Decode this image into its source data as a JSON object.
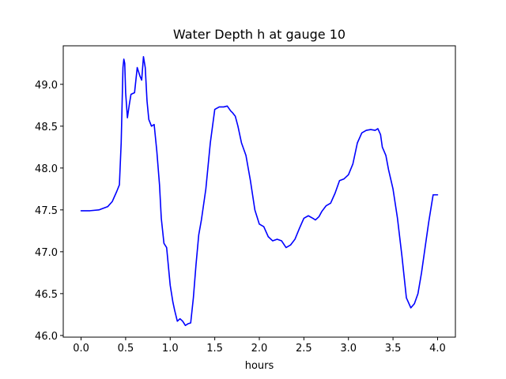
{
  "chart_data": {
    "type": "line",
    "title": "Water Depth h at gauge 10",
    "xlabel": "hours",
    "ylabel": "",
    "xlim": [
      -0.2,
      4.2
    ],
    "ylim": [
      45.98,
      49.46
    ],
    "xticks": [
      0.0,
      0.5,
      1.0,
      1.5,
      2.0,
      2.5,
      3.0,
      3.5,
      4.0
    ],
    "xtick_labels": [
      "0.0",
      "0.5",
      "1.0",
      "1.5",
      "2.0",
      "2.5",
      "3.0",
      "3.5",
      "4.0"
    ],
    "yticks": [
      46.0,
      46.5,
      47.0,
      47.5,
      48.0,
      48.5,
      49.0
    ],
    "ytick_labels": [
      "46.0",
      "46.5",
      "47.0",
      "47.5",
      "48.0",
      "48.5",
      "49.0"
    ],
    "grid": false,
    "series": [
      {
        "color": "#0000ff",
        "x": [
          0.0,
          0.1,
          0.2,
          0.3,
          0.35,
          0.4,
          0.43,
          0.45,
          0.47,
          0.48,
          0.49,
          0.5,
          0.52,
          0.54,
          0.56,
          0.6,
          0.63,
          0.66,
          0.68,
          0.7,
          0.72,
          0.74,
          0.76,
          0.79,
          0.82,
          0.85,
          0.88,
          0.9,
          0.93,
          0.96,
          1.0,
          1.03,
          1.05,
          1.08,
          1.11,
          1.14,
          1.17,
          1.2,
          1.23,
          1.26,
          1.29,
          1.32,
          1.35,
          1.4,
          1.45,
          1.5,
          1.55,
          1.6,
          1.64,
          1.68,
          1.7,
          1.73,
          1.76,
          1.8,
          1.85,
          1.9,
          1.95,
          2.0,
          2.05,
          2.1,
          2.15,
          2.2,
          2.25,
          2.3,
          2.35,
          2.4,
          2.45,
          2.5,
          2.55,
          2.6,
          2.63,
          2.67,
          2.7,
          2.75,
          2.8,
          2.85,
          2.9,
          2.95,
          3.0,
          3.05,
          3.1,
          3.15,
          3.2,
          3.25,
          3.3,
          3.33,
          3.36,
          3.38,
          3.4,
          3.42,
          3.45,
          3.5,
          3.55,
          3.6,
          3.65,
          3.7,
          3.74,
          3.78,
          3.82,
          3.86,
          3.9,
          3.95,
          4.0
        ],
        "y": [
          47.49,
          47.49,
          47.5,
          47.54,
          47.6,
          47.72,
          47.8,
          48.3,
          49.2,
          49.3,
          49.25,
          48.9,
          48.6,
          48.75,
          48.88,
          48.9,
          49.2,
          49.1,
          49.05,
          49.33,
          49.2,
          48.8,
          48.58,
          48.5,
          48.52,
          48.2,
          47.8,
          47.4,
          47.1,
          47.05,
          46.6,
          46.4,
          46.3,
          46.17,
          46.2,
          46.17,
          46.12,
          46.14,
          46.15,
          46.45,
          46.85,
          47.2,
          47.38,
          47.75,
          48.3,
          48.7,
          48.73,
          48.73,
          48.74,
          48.68,
          48.66,
          48.62,
          48.5,
          48.3,
          48.15,
          47.85,
          47.5,
          47.33,
          47.3,
          47.18,
          47.13,
          47.15,
          47.13,
          47.05,
          47.08,
          47.15,
          47.28,
          47.4,
          47.43,
          47.4,
          47.38,
          47.42,
          47.48,
          47.55,
          47.58,
          47.7,
          47.85,
          47.87,
          47.92,
          48.05,
          48.3,
          48.42,
          48.45,
          48.46,
          48.45,
          48.47,
          48.4,
          48.25,
          48.2,
          48.15,
          47.98,
          47.75,
          47.4,
          46.95,
          46.45,
          46.33,
          46.38,
          46.5,
          46.75,
          47.05,
          47.35,
          47.68,
          47.68
        ]
      }
    ]
  }
}
